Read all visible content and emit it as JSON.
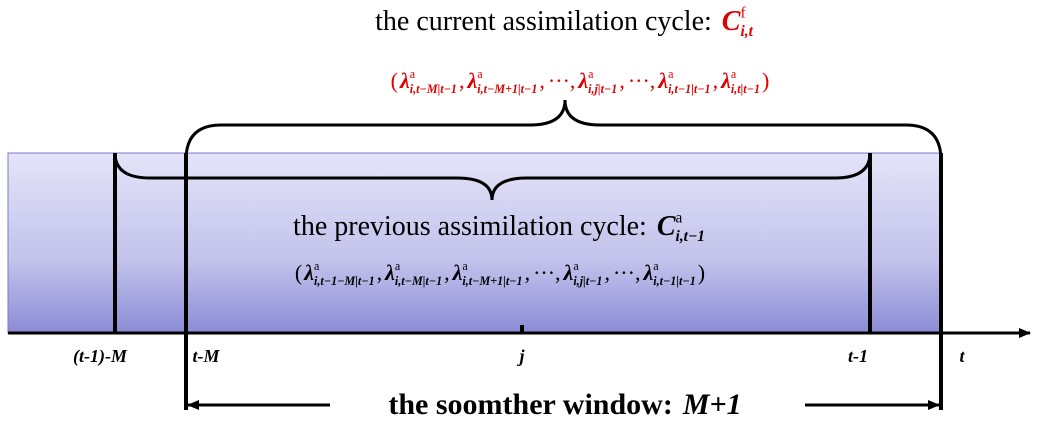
{
  "current_cycle": {
    "label": "the current assimilation cycle:",
    "symbol": {
      "base": "C",
      "sup": "f",
      "sub": "i,t"
    },
    "sequence": {
      "open": "(",
      "close": ")",
      "separator": ",",
      "items": [
        {
          "base": "λ",
          "sup": "a",
          "sub": "i,t−M|t−1"
        },
        {
          "base": "λ",
          "sup": "a",
          "sub": "i,t−M+1|t−1"
        },
        "···",
        {
          "base": "λ",
          "sup": "a",
          "sub": "i,j|t−1"
        },
        "···",
        {
          "base": "λ",
          "sup": "a",
          "sub": "i,t−1|t−1"
        },
        {
          "base": "λ",
          "sup": "a",
          "sub": "i,t|t−1"
        }
      ]
    }
  },
  "previous_cycle": {
    "label": "the previous assimilation cycle:",
    "symbol": {
      "base": "C",
      "sup": "a",
      "sub": "i,t−1"
    },
    "sequence": {
      "open": "(",
      "close": ")",
      "separator": ",",
      "items": [
        {
          "base": "λ",
          "sup": "a",
          "sub": "i,t−1−M|t−1"
        },
        {
          "base": "λ",
          "sup": "a",
          "sub": "i,t−M|t−1"
        },
        {
          "base": "λ",
          "sup": "a",
          "sub": "i,t−M+1|t−1"
        },
        "···",
        {
          "base": "λ",
          "sup": "a",
          "sub": "i,j|t−1"
        },
        "···",
        {
          "base": "λ",
          "sup": "a",
          "sub": "i,t−1|t−1"
        }
      ]
    }
  },
  "axis_labels": [
    "(t-1)-M",
    "t-M",
    "j",
    "t-1",
    "t"
  ],
  "window": {
    "label": "the soomther window:",
    "size": "M+1"
  }
}
